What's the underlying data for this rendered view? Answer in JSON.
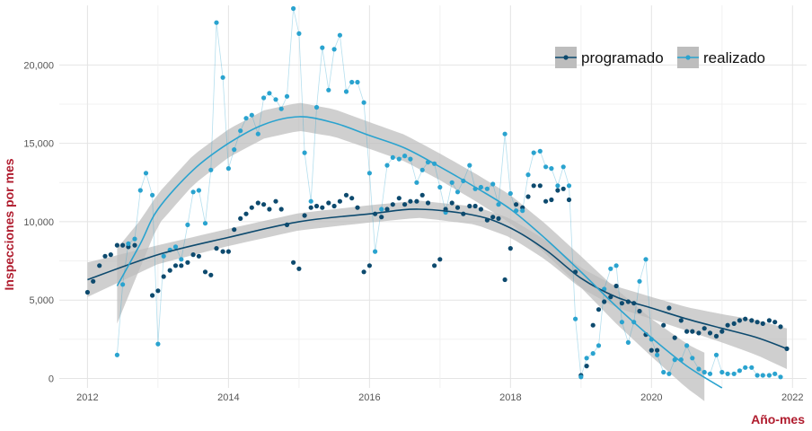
{
  "chart_data": {
    "type": "scatter",
    "ylabel": "Inspecciones por mes",
    "xlabel": "Año-mes",
    "x_ticks": [
      "2012",
      "2014",
      "2016",
      "2018",
      "2020",
      "2022"
    ],
    "y_ticks": [
      "0",
      "5,000",
      "10,000",
      "15,000",
      "20,000"
    ],
    "xlim": [
      2011.6,
      2022.2
    ],
    "ylim": [
      -600,
      23800
    ],
    "grid": true,
    "legend_position": "top-right",
    "colors": {
      "programado": "#0d4a6e",
      "realizado": "#2aa3cf",
      "band": "#bdbdbd"
    },
    "series": [
      {
        "name": "programado",
        "points": [
          [
            2012.0,
            5500
          ],
          [
            2012.08,
            6200
          ],
          [
            2012.17,
            7200
          ],
          [
            2012.25,
            7800
          ],
          [
            2012.33,
            7900
          ],
          [
            2012.42,
            8500
          ],
          [
            2012.5,
            8500
          ],
          [
            2012.58,
            8400
          ],
          [
            2012.67,
            8500
          ],
          [
            2012.92,
            5300
          ],
          [
            2013.0,
            5600
          ],
          [
            2013.08,
            6500
          ],
          [
            2013.17,
            6900
          ],
          [
            2013.25,
            7200
          ],
          [
            2013.33,
            7200
          ],
          [
            2013.42,
            7400
          ],
          [
            2013.5,
            7900
          ],
          [
            2013.58,
            7800
          ],
          [
            2013.67,
            6800
          ],
          [
            2013.75,
            6600
          ],
          [
            2013.83,
            8300
          ],
          [
            2013.92,
            8100
          ],
          [
            2014.0,
            8100
          ],
          [
            2014.08,
            9500
          ],
          [
            2014.17,
            10200
          ],
          [
            2014.25,
            10500
          ],
          [
            2014.33,
            10900
          ],
          [
            2014.42,
            11200
          ],
          [
            2014.5,
            11100
          ],
          [
            2014.58,
            10800
          ],
          [
            2014.67,
            11300
          ],
          [
            2014.75,
            10800
          ],
          [
            2014.83,
            9800
          ],
          [
            2014.92,
            7400
          ],
          [
            2015.0,
            7000
          ],
          [
            2015.08,
            10400
          ],
          [
            2015.17,
            10900
          ],
          [
            2015.25,
            11000
          ],
          [
            2015.33,
            10900
          ],
          [
            2015.42,
            11200
          ],
          [
            2015.5,
            11000
          ],
          [
            2015.58,
            11300
          ],
          [
            2015.67,
            11700
          ],
          [
            2015.75,
            11500
          ],
          [
            2015.83,
            10900
          ],
          [
            2015.92,
            6800
          ],
          [
            2016.0,
            7200
          ],
          [
            2016.08,
            10500
          ],
          [
            2016.17,
            10300
          ],
          [
            2016.25,
            10800
          ],
          [
            2016.33,
            11100
          ],
          [
            2016.42,
            11500
          ],
          [
            2016.5,
            11100
          ],
          [
            2016.58,
            11300
          ],
          [
            2016.67,
            11300
          ],
          [
            2016.75,
            11700
          ],
          [
            2016.83,
            11200
          ],
          [
            2016.92,
            7200
          ],
          [
            2017.0,
            7600
          ],
          [
            2017.08,
            10800
          ],
          [
            2017.17,
            11200
          ],
          [
            2017.25,
            10900
          ],
          [
            2017.33,
            10500
          ],
          [
            2017.42,
            11000
          ],
          [
            2017.5,
            11000
          ],
          [
            2017.58,
            10800
          ],
          [
            2017.67,
            10100
          ],
          [
            2017.75,
            10300
          ],
          [
            2017.83,
            10200
          ],
          [
            2017.92,
            6300
          ],
          [
            2018.0,
            8300
          ],
          [
            2018.08,
            11100
          ],
          [
            2018.17,
            10900
          ],
          [
            2018.25,
            11600
          ],
          [
            2018.33,
            12300
          ],
          [
            2018.42,
            12300
          ],
          [
            2018.5,
            11300
          ],
          [
            2018.58,
            11400
          ],
          [
            2018.67,
            12000
          ],
          [
            2018.75,
            12100
          ],
          [
            2018.83,
            11400
          ],
          [
            2018.92,
            6800
          ],
          [
            2019.0,
            200
          ],
          [
            2019.08,
            800
          ],
          [
            2019.17,
            3400
          ],
          [
            2019.25,
            4400
          ],
          [
            2019.33,
            4900
          ],
          [
            2019.42,
            5200
          ],
          [
            2019.5,
            5900
          ],
          [
            2019.58,
            4800
          ],
          [
            2019.67,
            4900
          ],
          [
            2019.75,
            4800
          ],
          [
            2019.83,
            4300
          ],
          [
            2019.92,
            2800
          ],
          [
            2020.0,
            1800
          ],
          [
            2020.08,
            1800
          ],
          [
            2020.17,
            3400
          ],
          [
            2020.25,
            4500
          ],
          [
            2020.33,
            2600
          ],
          [
            2020.42,
            3700
          ],
          [
            2020.5,
            3000
          ],
          [
            2020.58,
            3000
          ],
          [
            2020.67,
            2900
          ],
          [
            2020.75,
            3200
          ],
          [
            2020.83,
            2900
          ],
          [
            2020.92,
            2700
          ],
          [
            2021.0,
            3000
          ],
          [
            2021.08,
            3400
          ],
          [
            2021.17,
            3500
          ],
          [
            2021.25,
            3700
          ],
          [
            2021.33,
            3800
          ],
          [
            2021.42,
            3700
          ],
          [
            2021.5,
            3600
          ],
          [
            2021.58,
            3500
          ],
          [
            2021.67,
            3700
          ],
          [
            2021.75,
            3600
          ],
          [
            2021.83,
            3300
          ],
          [
            2021.92,
            1900
          ]
        ],
        "trend": [
          [
            2012.0,
            6300
          ],
          [
            2013.0,
            7900
          ],
          [
            2014.0,
            9000
          ],
          [
            2015.0,
            10000
          ],
          [
            2016.0,
            10500
          ],
          [
            2016.7,
            10800
          ],
          [
            2017.5,
            10400
          ],
          [
            2018.0,
            9600
          ],
          [
            2018.5,
            8200
          ],
          [
            2019.0,
            6400
          ],
          [
            2019.5,
            5200
          ],
          [
            2020.0,
            4500
          ],
          [
            2020.5,
            3800
          ],
          [
            2021.0,
            3200
          ],
          [
            2021.5,
            2600
          ],
          [
            2021.92,
            1900
          ]
        ],
        "band_half_width": [
          [
            2012.0,
            1100
          ],
          [
            2013.0,
            600
          ],
          [
            2014.0,
            550
          ],
          [
            2015.0,
            550
          ],
          [
            2016.0,
            550
          ],
          [
            2017.0,
            550
          ],
          [
            2018.0,
            600
          ],
          [
            2019.0,
            650
          ],
          [
            2020.0,
            700
          ],
          [
            2020.5,
            750
          ],
          [
            2021.0,
            900
          ],
          [
            2021.92,
            1300
          ]
        ]
      },
      {
        "name": "realizado",
        "points": [
          [
            2012.42,
            1500
          ],
          [
            2012.5,
            6000
          ],
          [
            2012.58,
            8600
          ],
          [
            2012.67,
            8900
          ],
          [
            2012.75,
            12000
          ],
          [
            2012.83,
            13100
          ],
          [
            2012.92,
            11700
          ],
          [
            2013.0,
            2200
          ],
          [
            2013.08,
            7800
          ],
          [
            2013.17,
            8200
          ],
          [
            2013.25,
            8400
          ],
          [
            2013.33,
            7600
          ],
          [
            2013.42,
            9800
          ],
          [
            2013.5,
            11900
          ],
          [
            2013.58,
            12000
          ],
          [
            2013.67,
            9900
          ],
          [
            2013.75,
            13300
          ],
          [
            2013.83,
            22700
          ],
          [
            2013.92,
            19200
          ],
          [
            2014.0,
            13400
          ],
          [
            2014.08,
            14600
          ],
          [
            2014.17,
            15800
          ],
          [
            2014.25,
            16600
          ],
          [
            2014.33,
            16800
          ],
          [
            2014.42,
            15600
          ],
          [
            2014.5,
            17900
          ],
          [
            2014.58,
            18200
          ],
          [
            2014.67,
            17800
          ],
          [
            2014.75,
            17200
          ],
          [
            2014.83,
            18000
          ],
          [
            2014.92,
            23600
          ],
          [
            2015.0,
            22000
          ],
          [
            2015.08,
            14400
          ],
          [
            2015.17,
            11300
          ],
          [
            2015.25,
            17300
          ],
          [
            2015.33,
            21100
          ],
          [
            2015.42,
            18400
          ],
          [
            2015.5,
            21000
          ],
          [
            2015.58,
            21900
          ],
          [
            2015.67,
            18300
          ],
          [
            2015.75,
            18900
          ],
          [
            2015.83,
            18900
          ],
          [
            2015.92,
            17600
          ],
          [
            2016.0,
            13100
          ],
          [
            2016.08,
            8100
          ],
          [
            2016.17,
            10800
          ],
          [
            2016.25,
            13600
          ],
          [
            2016.33,
            14100
          ],
          [
            2016.42,
            14000
          ],
          [
            2016.5,
            14200
          ],
          [
            2016.58,
            14000
          ],
          [
            2016.67,
            12500
          ],
          [
            2016.75,
            13300
          ],
          [
            2016.83,
            13800
          ],
          [
            2016.92,
            13700
          ],
          [
            2017.0,
            12200
          ],
          [
            2017.08,
            10600
          ],
          [
            2017.17,
            12500
          ],
          [
            2017.25,
            11900
          ],
          [
            2017.33,
            12600
          ],
          [
            2017.42,
            13600
          ],
          [
            2017.5,
            12100
          ],
          [
            2017.58,
            12200
          ],
          [
            2017.67,
            12100
          ],
          [
            2017.75,
            12400
          ],
          [
            2017.83,
            11100
          ],
          [
            2017.92,
            15600
          ],
          [
            2018.0,
            11800
          ],
          [
            2018.08,
            10700
          ],
          [
            2018.17,
            10700
          ],
          [
            2018.25,
            13000
          ],
          [
            2018.33,
            14400
          ],
          [
            2018.42,
            14500
          ],
          [
            2018.5,
            13500
          ],
          [
            2018.58,
            13400
          ],
          [
            2018.67,
            12300
          ],
          [
            2018.75,
            13500
          ],
          [
            2018.83,
            12300
          ],
          [
            2018.92,
            3800
          ],
          [
            2019.0,
            100
          ],
          [
            2019.08,
            1300
          ],
          [
            2019.17,
            1600
          ],
          [
            2019.25,
            2100
          ],
          [
            2019.33,
            5700
          ],
          [
            2019.42,
            7000
          ],
          [
            2019.5,
            7200
          ],
          [
            2019.58,
            3600
          ],
          [
            2019.67,
            2300
          ],
          [
            2019.75,
            3600
          ],
          [
            2019.83,
            6200
          ],
          [
            2019.92,
            7600
          ],
          [
            2020.0,
            2500
          ],
          [
            2020.08,
            1500
          ],
          [
            2020.17,
            400
          ],
          [
            2020.25,
            300
          ],
          [
            2020.33,
            1200
          ],
          [
            2020.42,
            1200
          ],
          [
            2020.5,
            2100
          ],
          [
            2020.58,
            1300
          ],
          [
            2020.67,
            600
          ],
          [
            2020.75,
            400
          ],
          [
            2020.83,
            300
          ],
          [
            2020.92,
            1500
          ],
          [
            2021.0,
            400
          ],
          [
            2021.08,
            300
          ],
          [
            2021.17,
            300
          ],
          [
            2021.25,
            500
          ],
          [
            2021.33,
            700
          ],
          [
            2021.42,
            700
          ],
          [
            2021.5,
            200
          ],
          [
            2021.58,
            200
          ],
          [
            2021.67,
            200
          ],
          [
            2021.75,
            300
          ],
          [
            2021.83,
            100
          ]
        ],
        "trend": [
          [
            2012.42,
            5900
          ],
          [
            2012.75,
            8600
          ],
          [
            2013.0,
            10800
          ],
          [
            2013.5,
            13300
          ],
          [
            2014.0,
            15000
          ],
          [
            2014.5,
            16200
          ],
          [
            2015.0,
            16700
          ],
          [
            2015.5,
            16300
          ],
          [
            2016.0,
            15500
          ],
          [
            2016.5,
            14700
          ],
          [
            2017.0,
            13500
          ],
          [
            2017.5,
            12200
          ],
          [
            2018.0,
            10800
          ],
          [
            2018.5,
            8900
          ],
          [
            2019.0,
            6800
          ],
          [
            2019.5,
            4600
          ],
          [
            2020.0,
            2600
          ],
          [
            2020.5,
            800
          ],
          [
            2021.0,
            -600
          ]
        ],
        "band_half_width": [
          [
            2012.42,
            2400
          ],
          [
            2012.75,
            1500
          ],
          [
            2013.0,
            1000
          ],
          [
            2014.0,
            900
          ],
          [
            2015.0,
            900
          ],
          [
            2016.0,
            850
          ],
          [
            2017.0,
            850
          ],
          [
            2018.0,
            900
          ],
          [
            2019.0,
            1000
          ],
          [
            2020.0,
            1200
          ],
          [
            2020.7,
            1500
          ],
          [
            2021.0,
            1800
          ]
        ]
      }
    ],
    "band_clip": {
      "realizado": 2020.75
    }
  }
}
